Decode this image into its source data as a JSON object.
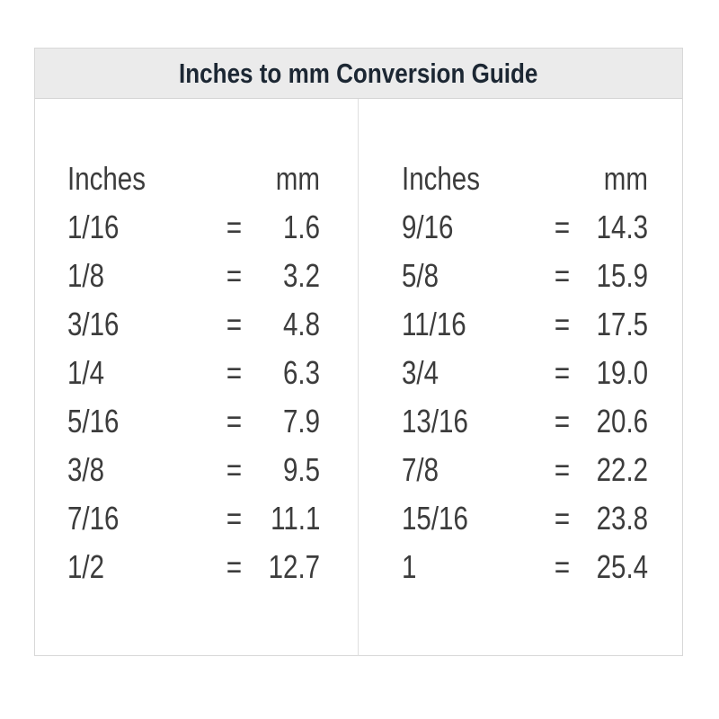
{
  "title": "Inches to mm Conversion Guide",
  "colors": {
    "page_bg": "#ffffff",
    "header_bg": "#ebebeb",
    "border": "#d8d8d8",
    "title_text": "#1c2733",
    "body_text": "#3c3c3c"
  },
  "table": {
    "columns": [
      {
        "inches_header": "Inches",
        "mm_header": "mm",
        "rows": [
          {
            "inches": "1/16",
            "eq": "=",
            "mm": "1.6"
          },
          {
            "inches": "1/8",
            "eq": "=",
            "mm": "3.2"
          },
          {
            "inches": "3/16",
            "eq": "=",
            "mm": "4.8"
          },
          {
            "inches": "1/4",
            "eq": "=",
            "mm": "6.3"
          },
          {
            "inches": "5/16",
            "eq": "=",
            "mm": "7.9"
          },
          {
            "inches": "3/8",
            "eq": "=",
            "mm": "9.5"
          },
          {
            "inches": "7/16",
            "eq": "=",
            "mm": "11.1"
          },
          {
            "inches": "1/2",
            "eq": "=",
            "mm": "12.7"
          }
        ]
      },
      {
        "inches_header": "Inches",
        "mm_header": "mm",
        "rows": [
          {
            "inches": "9/16",
            "eq": "=",
            "mm": "14.3"
          },
          {
            "inches": "5/8",
            "eq": "=",
            "mm": "15.9"
          },
          {
            "inches": "11/16",
            "eq": "=",
            "mm": "17.5"
          },
          {
            "inches": "3/4",
            "eq": "=",
            "mm": "19.0"
          },
          {
            "inches": "13/16",
            "eq": "=",
            "mm": "20.6"
          },
          {
            "inches": "7/8",
            "eq": "=",
            "mm": "22.2"
          },
          {
            "inches": "15/16",
            "eq": "=",
            "mm": "23.8"
          },
          {
            "inches": "1",
            "eq": "=",
            "mm": "25.4"
          }
        ]
      }
    ]
  }
}
